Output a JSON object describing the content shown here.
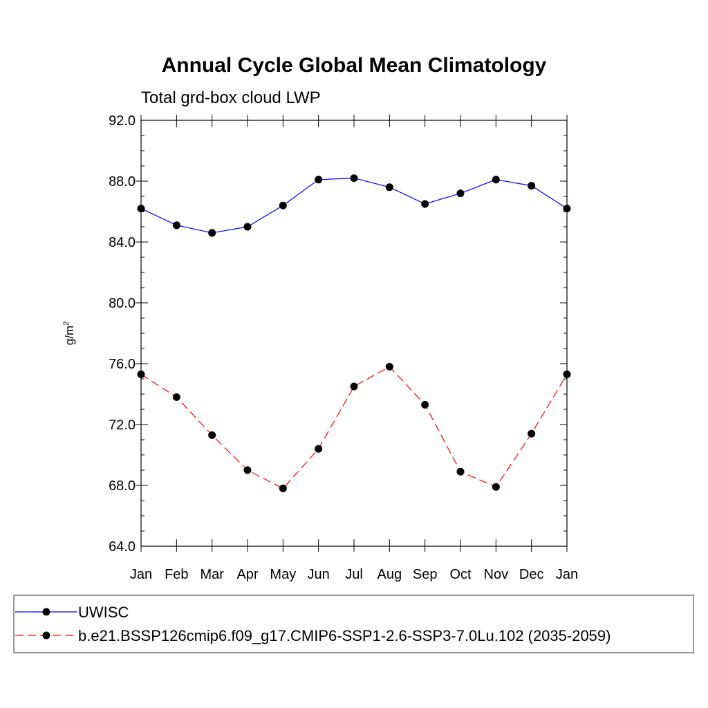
{
  "chart_data": {
    "type": "line",
    "title": "Annual Cycle Global Mean Climatology",
    "subtitle": "Total grd-box cloud LWP",
    "ylabel_base": "g/m",
    "ylabel_sup": "2",
    "ylim": [
      64.0,
      92.0
    ],
    "yticks": [
      "64.0",
      "68.0",
      "72.0",
      "76.0",
      "80.0",
      "84.0",
      "88.0",
      "92.0"
    ],
    "ytick_values": [
      64,
      68,
      72,
      76,
      80,
      84,
      88,
      92
    ],
    "categories": [
      "Jan",
      "Feb",
      "Mar",
      "Apr",
      "May",
      "Jun",
      "Jul",
      "Aug",
      "Sep",
      "Oct",
      "Nov",
      "Dec",
      "Jan"
    ],
    "grid": false,
    "legend_position": "bottom",
    "series": [
      {
        "name": "UWISC",
        "color": "#0000ff",
        "style": "solid",
        "values": [
          86.2,
          85.1,
          84.6,
          85.0,
          86.4,
          88.1,
          88.2,
          87.6,
          86.5,
          87.2,
          88.1,
          87.7,
          86.2
        ]
      },
      {
        "name": "b.e21.BSSP126cmip6.f09_g17.CMIP6-SSP1-2.6-SSP3-7.0Lu.102 (2035-2059)",
        "color": "#ff0000",
        "style": "dashed",
        "values": [
          75.3,
          73.8,
          71.3,
          69.0,
          67.8,
          70.4,
          74.5,
          75.8,
          73.3,
          68.9,
          67.9,
          71.4,
          75.3
        ]
      }
    ]
  }
}
